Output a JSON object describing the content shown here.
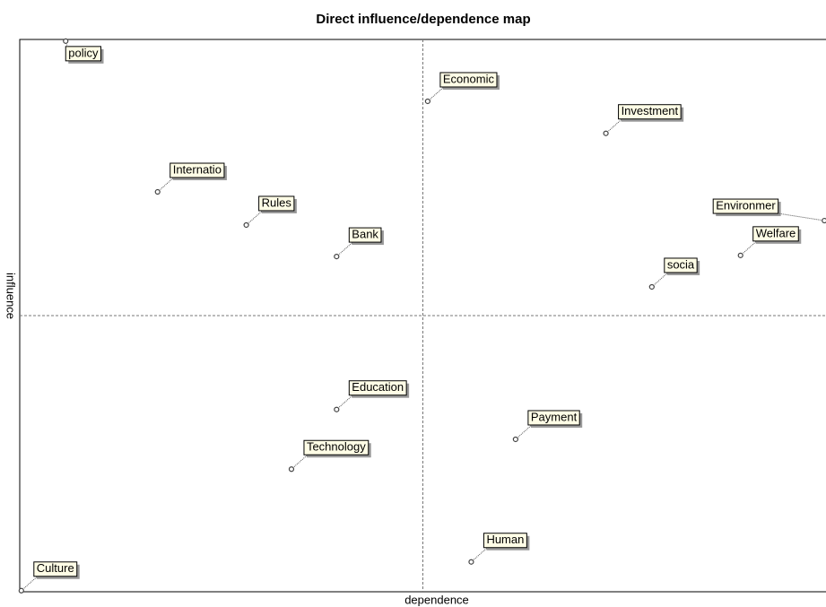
{
  "chart_data": {
    "type": "scatter",
    "title": "Direct influence/dependence map",
    "x_label": "dependence",
    "y_label": "influence",
    "labels": [
      "policy",
      "Economic",
      "Investment",
      "Internatio",
      "Rules",
      "Bank",
      "Environmer",
      "Welfare",
      "socia",
      "Education",
      "Payment",
      "Technology",
      "Human",
      "Culture"
    ],
    "x": [
      5.7,
      50.6,
      72.7,
      17.1,
      28.1,
      39.3,
      99.8,
      89.4,
      78.4,
      39.3,
      61.5,
      33.7,
      56.0,
      0.2
    ],
    "values": [
      99.7,
      88.8,
      83.0,
      72.4,
      66.4,
      60.7,
      67.2,
      60.9,
      55.2,
      33.0,
      27.6,
      22.2,
      5.4,
      0.2
    ],
    "xlim": [
      0,
      100
    ],
    "ylim": [
      0,
      100
    ]
  }
}
